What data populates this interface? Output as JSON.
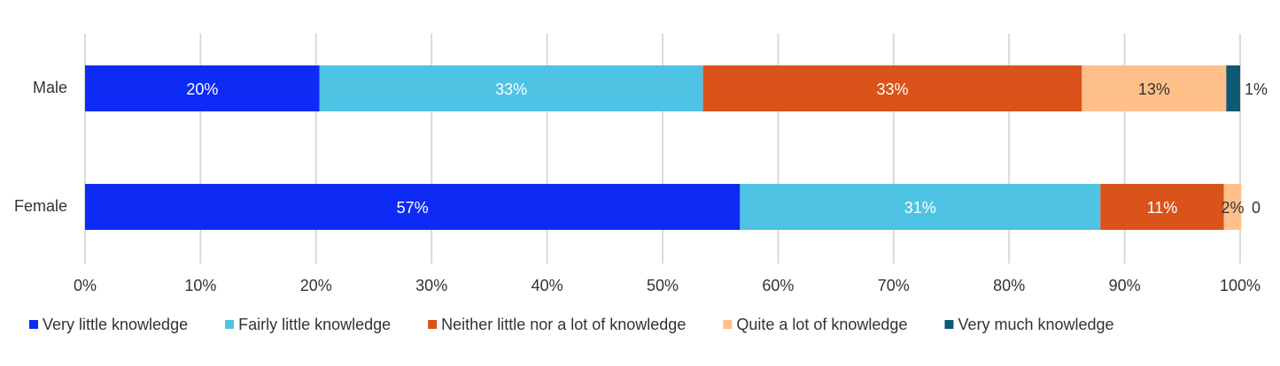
{
  "chart_data": {
    "type": "stacked-barh",
    "categories": [
      "Male",
      "Female"
    ],
    "series": [
      {
        "name": "Very little knowledge",
        "color": "#0d2bf5",
        "values": [
          20.3,
          56.7
        ],
        "value_labels": [
          "20%",
          "57%"
        ]
      },
      {
        "name": "Fairly little knowledge",
        "color": "#4fc3e3",
        "values": [
          33.2,
          31.2
        ],
        "value_labels": [
          "33%",
          "31%"
        ]
      },
      {
        "name": "Neither little nor a lot of knowledge",
        "color": "#d9531b",
        "values": [
          32.8,
          10.7
        ],
        "value_labels": [
          "33%",
          "11%"
        ]
      },
      {
        "name": "Quite a lot of knowledge",
        "color": "#ffc08a",
        "values": [
          12.5,
          1.5
        ],
        "value_labels": [
          "13%",
          "2%"
        ]
      },
      {
        "name": "Very much knowledge",
        "color": "#0e5a75",
        "values": [
          1.2,
          0
        ],
        "value_labels": [
          "1%",
          "0"
        ]
      }
    ],
    "xlim": [
      0,
      100
    ],
    "xticks": [
      {
        "value": 0,
        "label": "0%"
      },
      {
        "value": 10,
        "label": "10%"
      },
      {
        "value": 20,
        "label": "20%"
      },
      {
        "value": 30,
        "label": "30%"
      },
      {
        "value": 40,
        "label": "40%"
      },
      {
        "value": 50,
        "label": "50%"
      },
      {
        "value": 60,
        "label": "60%"
      },
      {
        "value": 70,
        "label": "70%"
      },
      {
        "value": 80,
        "label": "80%"
      },
      {
        "value": 90,
        "label": "90%"
      },
      {
        "value": 100,
        "label": "100%"
      }
    ],
    "grid": true,
    "legend": "bottom"
  }
}
